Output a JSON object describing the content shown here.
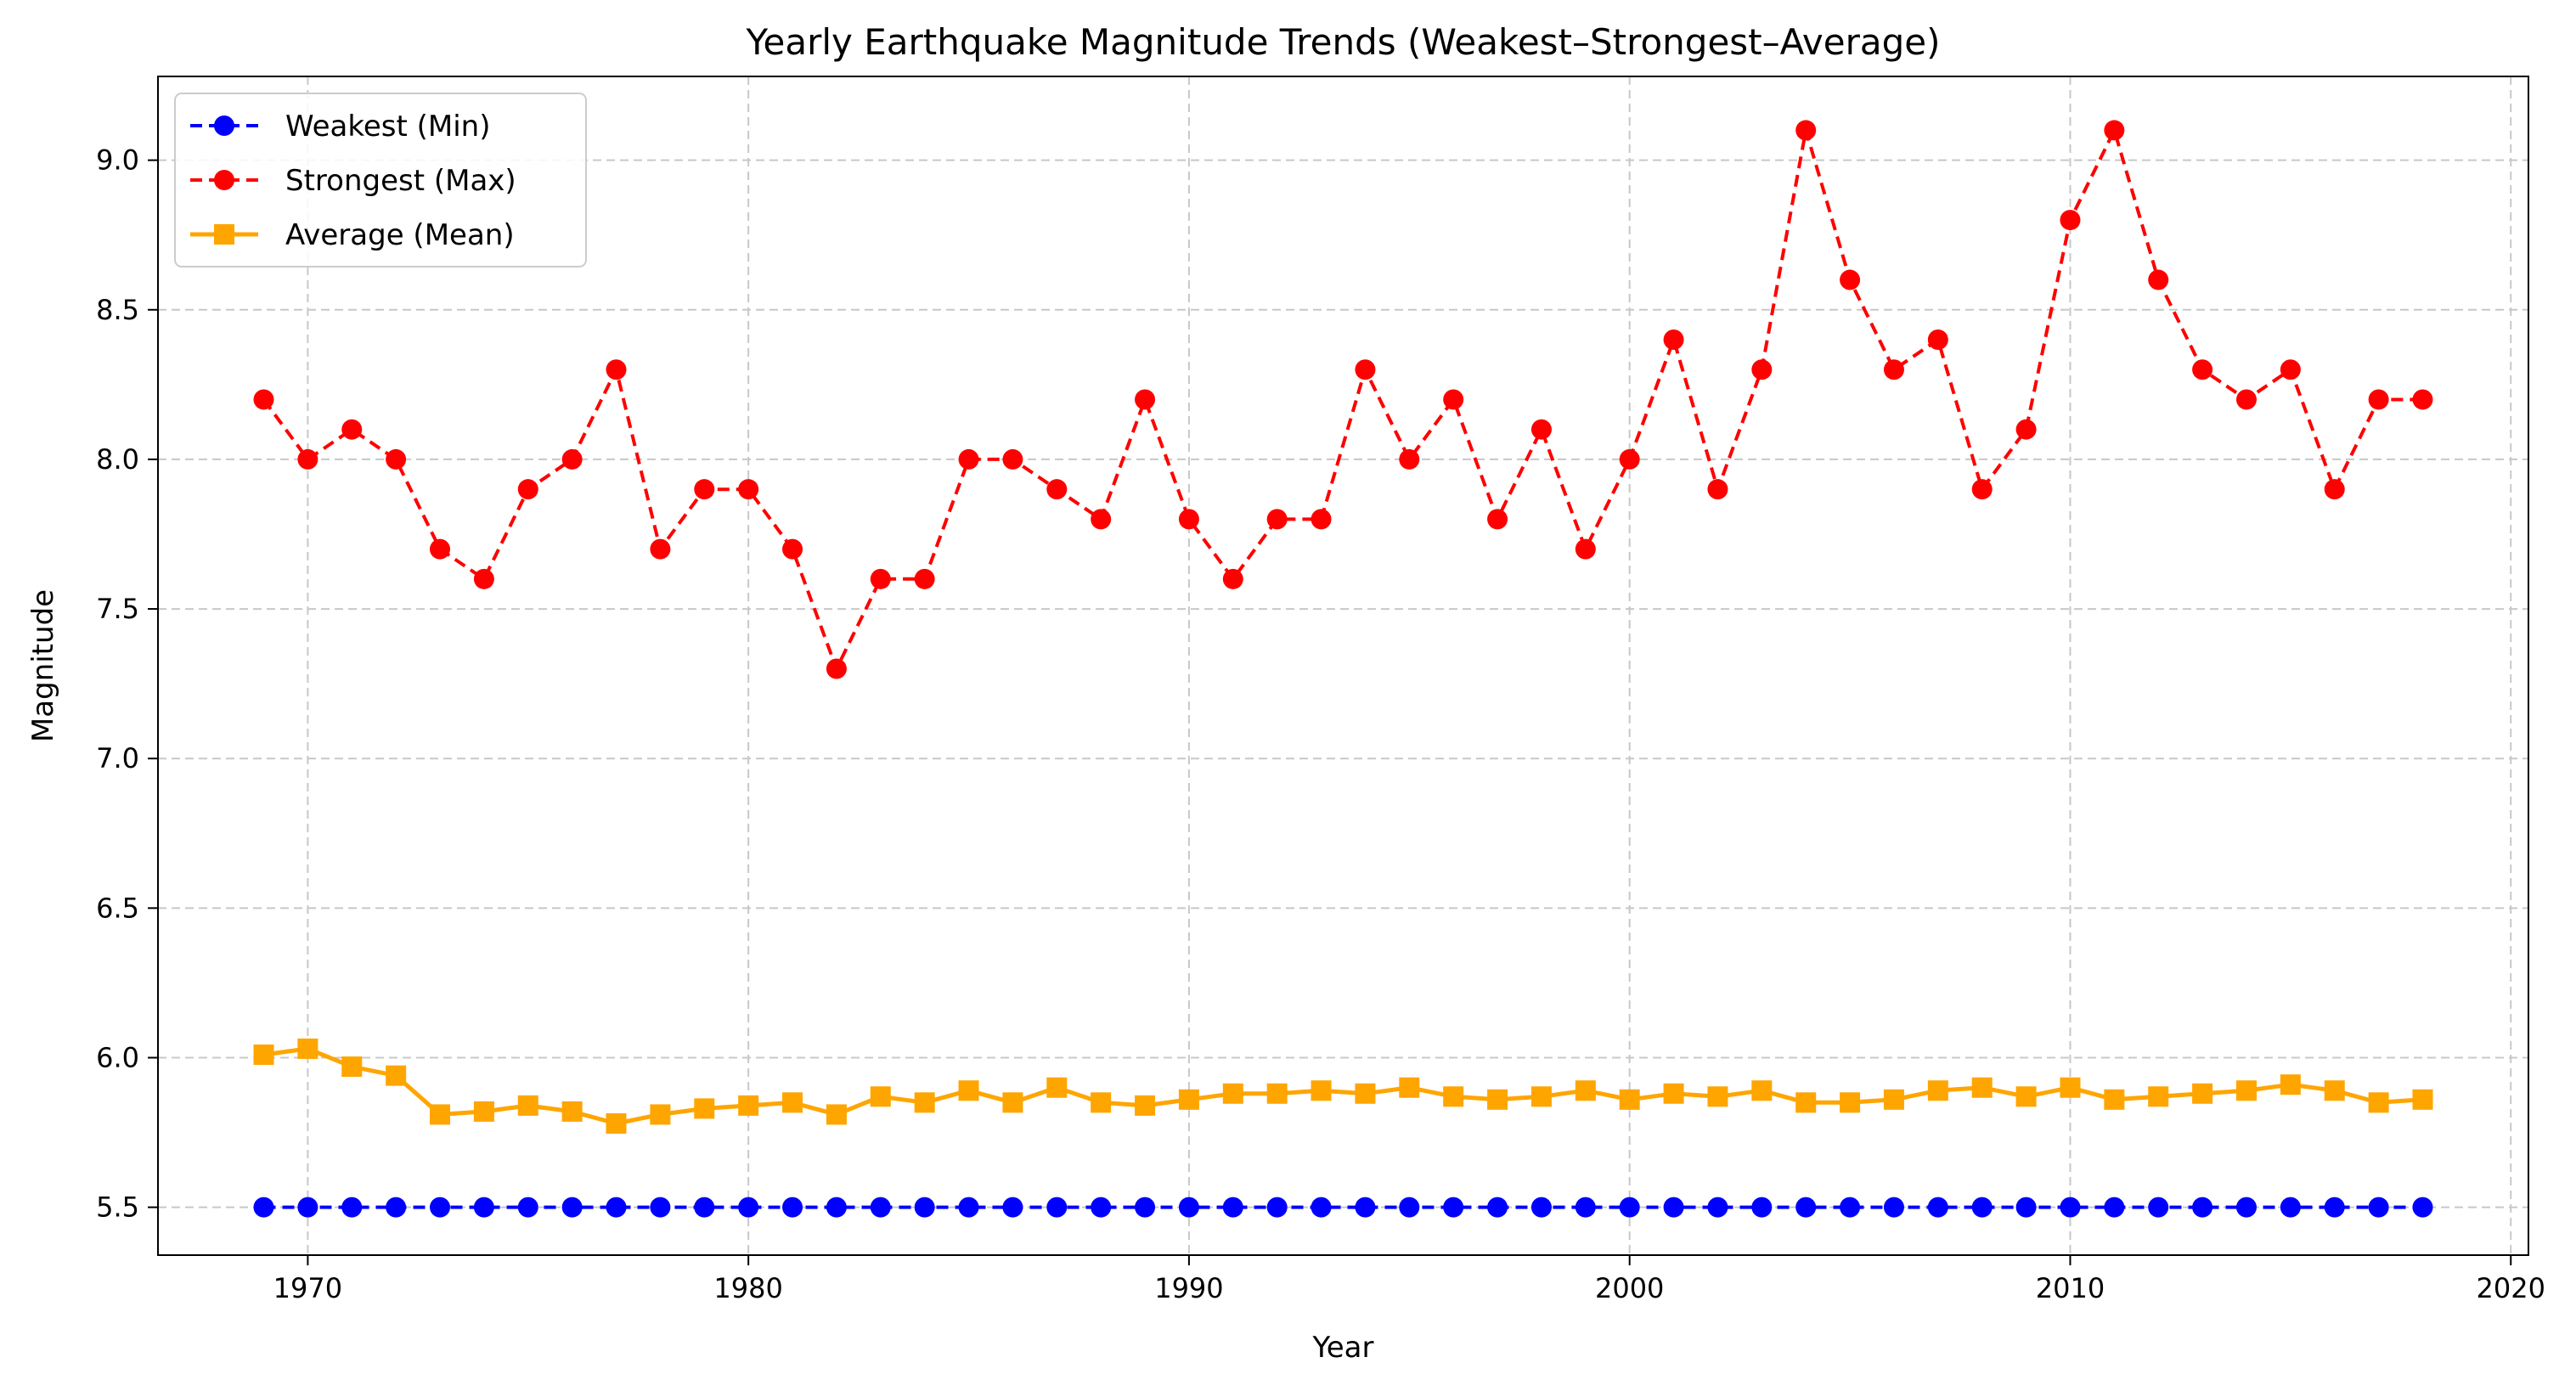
{
  "chart_data": {
    "type": "line",
    "title": "Yearly Earthquake Magnitude Trends (Weakest–Strongest–Average)",
    "xlabel": "Year",
    "ylabel": "Magnitude",
    "xlim": [
      1966.6,
      2020.4
    ],
    "ylim": [
      5.34,
      9.28
    ],
    "xticks": [
      1970,
      1980,
      1990,
      2000,
      2010,
      2020
    ],
    "yticks": [
      5.5,
      6.0,
      6.5,
      7.0,
      7.5,
      8.0,
      8.5,
      9.0
    ],
    "ytick_labels": [
      "5.5",
      "6.0",
      "6.5",
      "7.0",
      "7.5",
      "8.0",
      "8.5",
      "9.0"
    ],
    "grid": true,
    "legend_position": "top-left",
    "x": [
      1969,
      1970,
      1971,
      1972,
      1973,
      1974,
      1975,
      1976,
      1977,
      1978,
      1979,
      1980,
      1981,
      1982,
      1983,
      1984,
      1985,
      1986,
      1987,
      1988,
      1989,
      1990,
      1991,
      1992,
      1993,
      1994,
      1995,
      1996,
      1997,
      1998,
      1999,
      2000,
      2001,
      2002,
      2003,
      2004,
      2005,
      2006,
      2007,
      2008,
      2009,
      2010,
      2011,
      2012,
      2013,
      2014,
      2015,
      2016,
      2017,
      2018
    ],
    "series": [
      {
        "name": "Weakest (Min)",
        "color": "#0000ff",
        "linestyle": "dashed",
        "marker": "circle",
        "values": [
          5.5,
          5.5,
          5.5,
          5.5,
          5.5,
          5.5,
          5.5,
          5.5,
          5.5,
          5.5,
          5.5,
          5.5,
          5.5,
          5.5,
          5.5,
          5.5,
          5.5,
          5.5,
          5.5,
          5.5,
          5.5,
          5.5,
          5.5,
          5.5,
          5.5,
          5.5,
          5.5,
          5.5,
          5.5,
          5.5,
          5.5,
          5.5,
          5.5,
          5.5,
          5.5,
          5.5,
          5.5,
          5.5,
          5.5,
          5.5,
          5.5,
          5.5,
          5.5,
          5.5,
          5.5,
          5.5,
          5.5,
          5.5,
          5.5,
          5.5
        ]
      },
      {
        "name": "Strongest (Max)",
        "color": "#ff0000",
        "linestyle": "dashed",
        "marker": "circle",
        "values": [
          8.2,
          8.0,
          8.1,
          8.0,
          7.7,
          7.6,
          7.9,
          8.0,
          8.3,
          7.7,
          7.9,
          7.9,
          7.7,
          7.3,
          7.6,
          7.6,
          8.0,
          8.0,
          7.9,
          7.8,
          8.2,
          7.8,
          7.6,
          7.8,
          7.8,
          8.3,
          8.0,
          8.2,
          7.8,
          8.1,
          7.7,
          8.0,
          8.4,
          7.9,
          8.3,
          9.1,
          8.6,
          8.3,
          8.4,
          7.9,
          8.1,
          8.8,
          9.1,
          8.6,
          8.3,
          8.2,
          8.3,
          7.9,
          8.2,
          8.2
        ]
      },
      {
        "name": "Average (Mean)",
        "color": "#ffa500",
        "linestyle": "solid",
        "marker": "square",
        "values": [
          6.01,
          6.03,
          5.97,
          5.94,
          5.81,
          5.82,
          5.84,
          5.82,
          5.78,
          5.81,
          5.83,
          5.84,
          5.85,
          5.81,
          5.87,
          5.85,
          5.89,
          5.85,
          5.9,
          5.85,
          5.84,
          5.86,
          5.88,
          5.88,
          5.89,
          5.88,
          5.9,
          5.87,
          5.86,
          5.87,
          5.89,
          5.86,
          5.88,
          5.87,
          5.89,
          5.85,
          5.85,
          5.86,
          5.89,
          5.9,
          5.87,
          5.9,
          5.86,
          5.87,
          5.88,
          5.89,
          5.91,
          5.89,
          5.85,
          5.86
        ]
      }
    ]
  }
}
